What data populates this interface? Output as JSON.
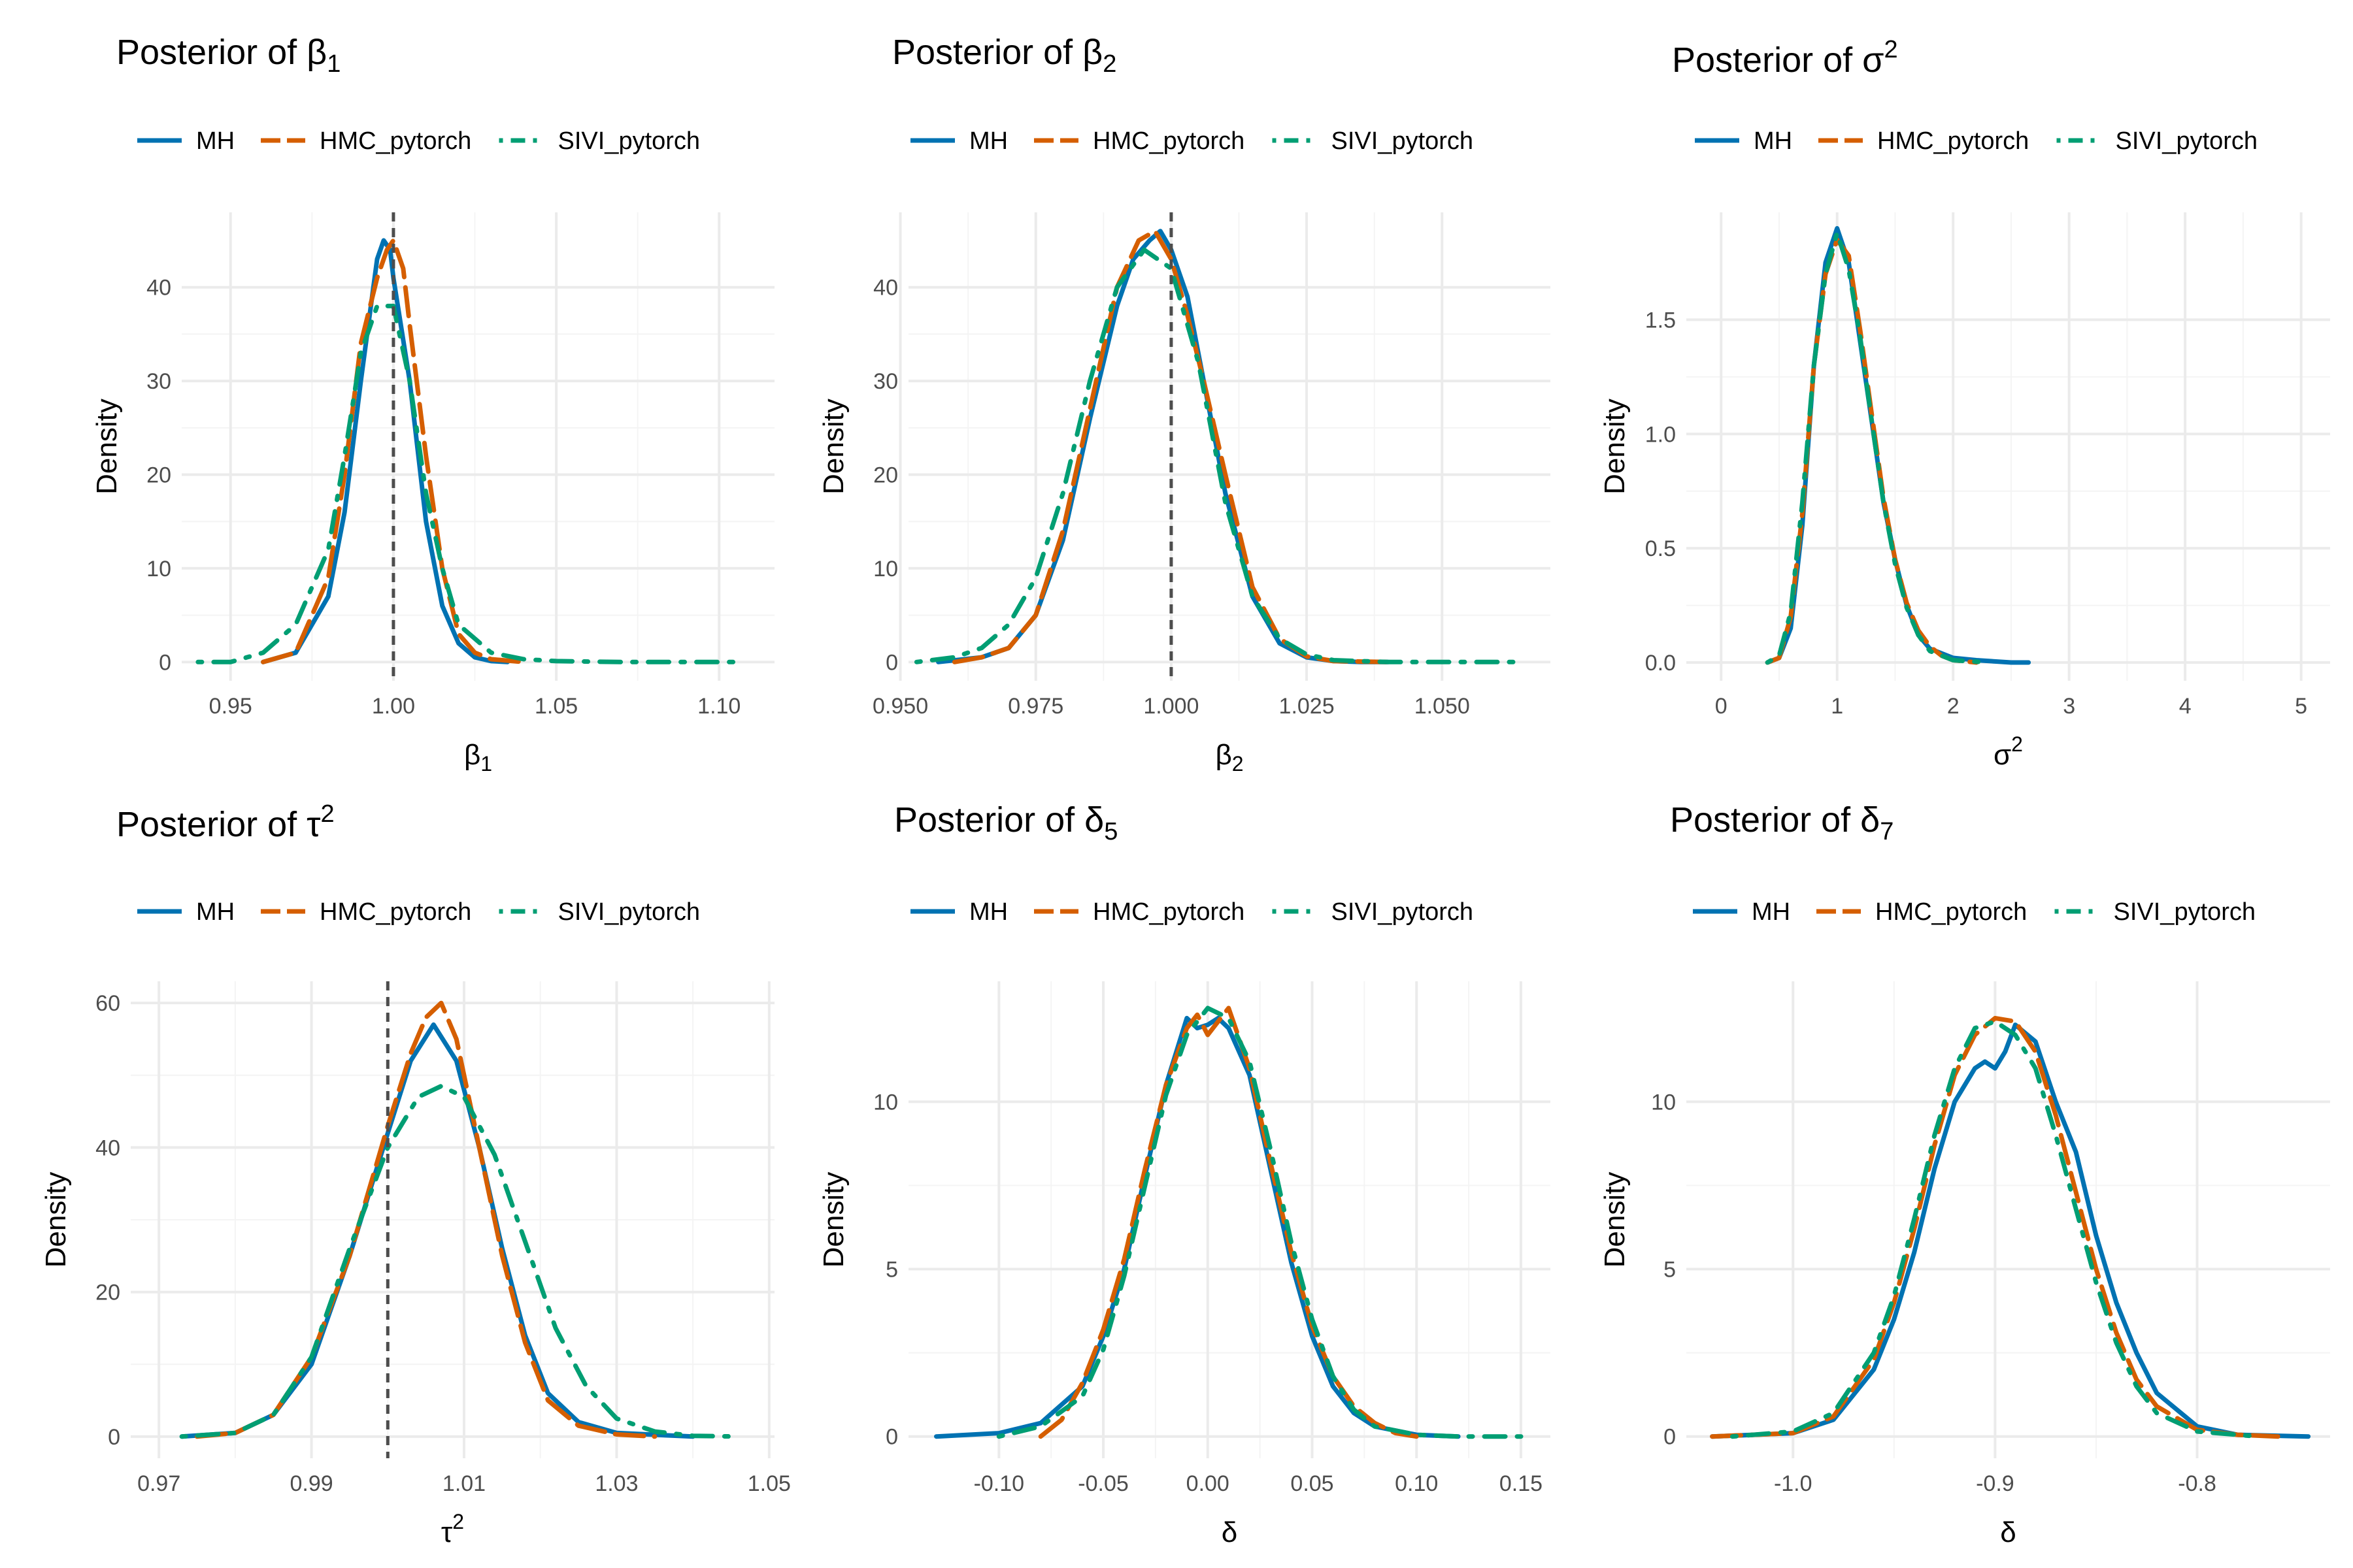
{
  "legend": {
    "MH": {
      "color": "#0072B2",
      "dash": "solid"
    },
    "HMC_pytorch": {
      "color": "#D55E00",
      "dash": "longdash"
    },
    "SIVI_pytorch": {
      "color": "#009E73",
      "dash": "dotdash"
    }
  },
  "chart_data": [
    {
      "type": "line",
      "title": "Posterior of β1",
      "title_main": "Posterior of β",
      "title_sub": "1",
      "xlabel_main": "β",
      "xlabel_sub": "1",
      "ylabel": "Density",
      "xlim": [
        0.935,
        1.117
      ],
      "ylim": [
        -2,
        48
      ],
      "xticks": [
        0.95,
        1.0,
        1.05,
        1.1
      ],
      "xtick_labels": [
        "0.95",
        "1.00",
        "1.05",
        "1.10"
      ],
      "yticks": [
        0,
        10,
        20,
        30,
        40
      ],
      "ytick_labels": [
        "0",
        "10",
        "20",
        "30",
        "40"
      ],
      "ref_x": 1.0,
      "series": [
        {
          "name": "MH",
          "x": [
            0.96,
            0.97,
            0.98,
            0.985,
            0.99,
            0.995,
            0.997,
            0.999,
            1.0,
            1.005,
            1.01,
            1.015,
            1.02,
            1.025,
            1.03,
            1.035
          ],
          "y": [
            0,
            1,
            7,
            16,
            30,
            43,
            45,
            44,
            41,
            30,
            15,
            6,
            2,
            0.5,
            0.1,
            0
          ]
        },
        {
          "name": "HMC_pytorch",
          "x": [
            0.96,
            0.97,
            0.98,
            0.985,
            0.99,
            0.995,
            0.998,
            1.0,
            1.003,
            1.005,
            1.01,
            1.015,
            1.02,
            1.025,
            1.03,
            1.04
          ],
          "y": [
            0,
            1,
            9,
            20,
            34,
            41,
            44,
            45,
            42,
            36,
            22,
            10,
            3,
            1,
            0.3,
            0
          ]
        },
        {
          "name": "SIVI_pytorch",
          "x": [
            0.94,
            0.95,
            0.96,
            0.97,
            0.98,
            0.985,
            0.99,
            0.995,
            1.0,
            1.005,
            1.01,
            1.015,
            1.02,
            1.03,
            1.04,
            1.05,
            1.07,
            1.09,
            1.105
          ],
          "y": [
            0,
            0,
            1,
            4,
            12,
            22,
            33,
            38,
            38,
            30,
            18,
            10,
            4,
            1,
            0.3,
            0.1,
            0,
            0,
            0
          ]
        }
      ]
    },
    {
      "type": "line",
      "title": "Posterior of β2",
      "title_main": "Posterior of β",
      "title_sub": "2",
      "xlabel_main": "β",
      "xlabel_sub": "2",
      "ylabel": "Density",
      "xlim": [
        0.9515,
        1.07
      ],
      "ylim": [
        -2,
        48
      ],
      "xticks": [
        0.95,
        0.975,
        1.0,
        1.025,
        1.05
      ],
      "xtick_labels": [
        "0.950",
        "0.975",
        "1.000",
        "1.025",
        "1.050"
      ],
      "yticks": [
        0,
        10,
        20,
        30,
        40
      ],
      "ytick_labels": [
        "0",
        "10",
        "20",
        "30",
        "40"
      ],
      "ref_x": 1.0,
      "series": [
        {
          "name": "MH",
          "x": [
            0.957,
            0.965,
            0.97,
            0.975,
            0.98,
            0.985,
            0.99,
            0.993,
            0.996,
            0.998,
            1.0,
            1.003,
            1.006,
            1.01,
            1.015,
            1.02,
            1.025,
            1.03,
            1.035,
            1.04
          ],
          "y": [
            0,
            0.5,
            1.5,
            5,
            13,
            26,
            38,
            43,
            45,
            46,
            44,
            39,
            30,
            18,
            7,
            2,
            0.5,
            0.1,
            0,
            0
          ]
        },
        {
          "name": "HMC_pytorch",
          "x": [
            0.96,
            0.965,
            0.97,
            0.975,
            0.98,
            0.985,
            0.99,
            0.994,
            0.997,
            1.0,
            1.003,
            1.006,
            1.01,
            1.015,
            1.02,
            1.025,
            1.03,
            1.04
          ],
          "y": [
            0,
            0.5,
            1.5,
            5,
            14,
            27,
            40,
            45,
            46,
            43,
            37,
            30,
            20,
            8,
            2.5,
            0.6,
            0.1,
            0
          ]
        },
        {
          "name": "SIVI_pytorch",
          "x": [
            0.953,
            0.96,
            0.965,
            0.97,
            0.975,
            0.98,
            0.985,
            0.99,
            0.995,
            1.0,
            1.005,
            1.01,
            1.015,
            1.02,
            1.025,
            1.03,
            1.04,
            1.05,
            1.065
          ],
          "y": [
            0,
            0.5,
            1.5,
            4,
            9,
            18,
            30,
            40,
            44,
            42,
            32,
            17,
            7,
            2.5,
            0.8,
            0.2,
            0,
            0,
            0
          ]
        }
      ]
    },
    {
      "type": "line",
      "title": "Posterior of σ2",
      "title_main": "Posterior of σ",
      "title_sup": "2",
      "xlabel_main": "σ",
      "xlabel_sup": "2",
      "ylabel": "Density",
      "xlim": [
        -0.3,
        5.25
      ],
      "ylim": [
        -0.08,
        1.97
      ],
      "xticks": [
        0,
        1,
        2,
        3,
        4,
        5
      ],
      "xtick_labels": [
        "0",
        "1",
        "2",
        "3",
        "4",
        "5"
      ],
      "yticks": [
        0,
        0.5,
        1.0,
        1.5
      ],
      "ytick_labels": [
        "0.0",
        "0.5",
        "1.0",
        "1.5"
      ],
      "series": [
        {
          "name": "MH",
          "x": [
            0.4,
            0.5,
            0.6,
            0.7,
            0.8,
            0.9,
            1.0,
            1.1,
            1.2,
            1.3,
            1.4,
            1.5,
            1.6,
            1.7,
            1.8,
            2.0,
            2.2,
            2.5,
            2.65
          ],
          "y": [
            0,
            0.02,
            0.15,
            0.6,
            1.3,
            1.75,
            1.9,
            1.75,
            1.4,
            1.05,
            0.7,
            0.45,
            0.25,
            0.12,
            0.06,
            0.02,
            0.01,
            0,
            0
          ]
        },
        {
          "name": "HMC_pytorch",
          "x": [
            0.4,
            0.5,
            0.6,
            0.7,
            0.8,
            0.9,
            1.0,
            1.1,
            1.2,
            1.3,
            1.4,
            1.5,
            1.6,
            1.7,
            1.8,
            1.9,
            2.0,
            2.2
          ],
          "y": [
            0,
            0.02,
            0.2,
            0.65,
            1.3,
            1.7,
            1.85,
            1.78,
            1.45,
            1.08,
            0.72,
            0.45,
            0.26,
            0.14,
            0.07,
            0.03,
            0.01,
            0
          ]
        },
        {
          "name": "SIVI_pytorch",
          "x": [
            0.4,
            0.5,
            0.6,
            0.7,
            0.8,
            0.9,
            1.0,
            1.1,
            1.2,
            1.3,
            1.4,
            1.5,
            1.6,
            1.7,
            1.8,
            2.0,
            2.3
          ],
          "y": [
            0,
            0.03,
            0.22,
            0.7,
            1.3,
            1.7,
            1.88,
            1.72,
            1.42,
            1.05,
            0.7,
            0.43,
            0.24,
            0.12,
            0.05,
            0.01,
            0
          ]
        }
      ]
    },
    {
      "type": "line",
      "title": "Posterior of τ2",
      "title_main": "Posterior of τ",
      "title_sup": "2",
      "xlabel_main": "τ",
      "xlabel_sup": "2",
      "ylabel": "Density",
      "xlim": [
        0.9663,
        1.0507
      ],
      "ylim": [
        -3,
        63
      ],
      "xticks": [
        0.97,
        0.99,
        1.01,
        1.03,
        1.05
      ],
      "xtick_labels": [
        "0.97",
        "0.99",
        "1.01",
        "1.03",
        "1.05"
      ],
      "yticks": [
        0,
        20,
        40,
        60
      ],
      "ytick_labels": [
        "0",
        "20",
        "40",
        "60"
      ],
      "ref_x": 1.0,
      "series": [
        {
          "name": "MH",
          "x": [
            0.973,
            0.98,
            0.985,
            0.99,
            0.995,
            1.0,
            1.003,
            1.006,
            1.009,
            1.012,
            1.015,
            1.018,
            1.021,
            1.025,
            1.03,
            1.04
          ],
          "y": [
            0,
            0.5,
            3,
            10,
            25,
            42,
            52,
            57,
            52,
            40,
            26,
            14,
            6,
            2,
            0.5,
            0
          ]
        },
        {
          "name": "HMC_pytorch",
          "x": [
            0.975,
            0.98,
            0.985,
            0.99,
            0.995,
            1.0,
            1.003,
            1.005,
            1.007,
            1.009,
            1.012,
            1.015,
            1.018,
            1.021,
            1.025,
            1.03,
            1.035
          ],
          "y": [
            0,
            0.5,
            3,
            11,
            25,
            43,
            53,
            58,
            60,
            55,
            40,
            25,
            13,
            5,
            1.5,
            0.3,
            0
          ]
        },
        {
          "name": "SIVI_pytorch",
          "x": [
            0.973,
            0.98,
            0.985,
            0.99,
            0.995,
            1.0,
            1.004,
            1.007,
            1.01,
            1.014,
            1.018,
            1.022,
            1.026,
            1.03,
            1.035,
            1.04,
            1.046
          ],
          "y": [
            0,
            0.5,
            3,
            11,
            26,
            40,
            47,
            48.5,
            47,
            39,
            27,
            15,
            7,
            2.5,
            0.7,
            0.1,
            0
          ]
        }
      ]
    },
    {
      "type": "line",
      "title": "Posterior of δ5",
      "title_main": "Posterior of δ",
      "title_sub": "5",
      "xlabel_main": "δ",
      "ylabel": "Density",
      "xlim": [
        -0.1433,
        0.1641
      ],
      "ylim": [
        -0.65,
        13.6
      ],
      "xticks": [
        -0.1,
        -0.05,
        0.0,
        0.05,
        0.1,
        0.15
      ],
      "xtick_labels": [
        "-0.10",
        "-0.05",
        "0.00",
        "0.05",
        "0.10",
        "0.15"
      ],
      "yticks": [
        0,
        5,
        10
      ],
      "ytick_labels": [
        "0",
        "5",
        "10"
      ],
      "series": [
        {
          "name": "MH",
          "x": [
            -0.13,
            -0.1,
            -0.08,
            -0.06,
            -0.05,
            -0.04,
            -0.03,
            -0.02,
            -0.01,
            -0.005,
            0.0,
            0.005,
            0.01,
            0.02,
            0.03,
            0.04,
            0.05,
            0.06,
            0.07,
            0.08,
            0.1,
            0.12
          ],
          "y": [
            0,
            0.1,
            0.4,
            1.5,
            3,
            5,
            7.8,
            10.5,
            12.5,
            12.2,
            12.3,
            12.5,
            12.2,
            10.8,
            8,
            5.2,
            3,
            1.5,
            0.7,
            0.3,
            0.05,
            0
          ]
        },
        {
          "name": "HMC_pytorch",
          "x": [
            -0.08,
            -0.07,
            -0.06,
            -0.05,
            -0.04,
            -0.03,
            -0.02,
            -0.01,
            -0.005,
            0.0,
            0.005,
            0.01,
            0.02,
            0.03,
            0.04,
            0.05,
            0.06,
            0.07,
            0.08,
            0.09,
            0.1
          ],
          "y": [
            0,
            0.5,
            1.6,
            3.2,
            5.3,
            8,
            10.5,
            12.2,
            12.6,
            12.0,
            12.4,
            12.8,
            11,
            8.2,
            5.5,
            3.3,
            1.8,
            0.9,
            0.4,
            0.1,
            0
          ]
        },
        {
          "name": "SIVI_pytorch",
          "x": [
            -0.1,
            -0.08,
            -0.06,
            -0.05,
            -0.04,
            -0.03,
            -0.02,
            -0.01,
            0.0,
            0.01,
            0.02,
            0.03,
            0.04,
            0.05,
            0.06,
            0.07,
            0.08,
            0.1,
            0.12,
            0.15
          ],
          "y": [
            0,
            0.3,
            1.2,
            2.6,
            4.8,
            7.5,
            10.2,
            12.0,
            12.8,
            12.5,
            11.2,
            8.6,
            5.8,
            3.5,
            1.8,
            0.8,
            0.3,
            0.05,
            0,
            0
          ]
        }
      ]
    },
    {
      "type": "line",
      "title": "Posterior of δ7",
      "title_main": "Posterior of δ",
      "title_sub": "7",
      "xlabel_main": "δ",
      "ylabel": "Density",
      "xlim": [
        -1.0528,
        -0.7342
      ],
      "ylim": [
        -0.65,
        13.6
      ],
      "xticks": [
        -1.0,
        -0.9,
        -0.8
      ],
      "xtick_labels": [
        "-1.0",
        "-0.9",
        "-0.8"
      ],
      "yticks": [
        0,
        5,
        10
      ],
      "ytick_labels": [
        "0",
        "5",
        "10"
      ],
      "series": [
        {
          "name": "MH",
          "x": [
            -1.04,
            -1.0,
            -0.98,
            -0.96,
            -0.95,
            -0.94,
            -0.93,
            -0.92,
            -0.91,
            -0.905,
            -0.9,
            -0.895,
            -0.89,
            -0.88,
            -0.87,
            -0.86,
            -0.85,
            -0.84,
            -0.83,
            -0.82,
            -0.8,
            -0.78,
            -0.745
          ],
          "y": [
            0,
            0.1,
            0.5,
            2,
            3.5,
            5.5,
            8,
            10,
            11,
            11.2,
            11,
            11.5,
            12.3,
            11.8,
            10,
            8.5,
            6,
            4,
            2.5,
            1.3,
            0.3,
            0.05,
            0
          ]
        },
        {
          "name": "HMC_pytorch",
          "x": [
            -1.04,
            -1.0,
            -0.98,
            -0.96,
            -0.95,
            -0.94,
            -0.93,
            -0.92,
            -0.91,
            -0.9,
            -0.89,
            -0.88,
            -0.87,
            -0.86,
            -0.85,
            -0.84,
            -0.83,
            -0.82,
            -0.8,
            -0.78,
            -0.76
          ],
          "y": [
            0,
            0.1,
            0.6,
            2.3,
            4,
            6.2,
            8.7,
            10.8,
            12.0,
            12.5,
            12.4,
            11.5,
            9.6,
            7.3,
            5,
            3.1,
            1.7,
            0.9,
            0.2,
            0.05,
            0
          ]
        },
        {
          "name": "SIVI_pytorch",
          "x": [
            -1.03,
            -1.0,
            -0.98,
            -0.96,
            -0.95,
            -0.94,
            -0.93,
            -0.92,
            -0.91,
            -0.9,
            -0.89,
            -0.88,
            -0.87,
            -0.86,
            -0.85,
            -0.84,
            -0.83,
            -0.82,
            -0.8,
            -0.77
          ],
          "y": [
            0,
            0.15,
            0.7,
            2.5,
            4.2,
            6.5,
            9,
            11,
            12.2,
            12.4,
            12.0,
            11.0,
            9,
            6.8,
            4.6,
            2.8,
            1.5,
            0.7,
            0.15,
            0
          ]
        }
      ]
    }
  ]
}
